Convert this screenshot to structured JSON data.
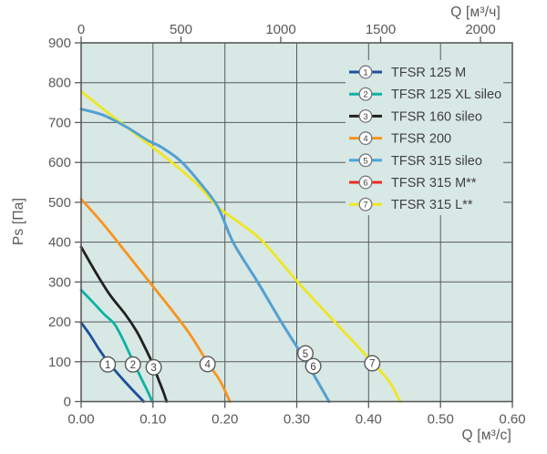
{
  "chart_data": {
    "type": "line",
    "description": "Fan performance curves: static pressure Ps versus airflow Q for TFSR duct fans",
    "plot_bg_color": "#d8e8e4",
    "grid_color": "#595a5c",
    "grid": true,
    "text_color": "#58595b",
    "legend_position": "top-right",
    "y_axis": {
      "label": "Ps [Па]",
      "range": [
        0,
        900
      ],
      "ticks": [
        {
          "v": 0,
          "label": "0"
        },
        {
          "v": 100,
          "label": "100"
        },
        {
          "v": 200,
          "label": "200"
        },
        {
          "v": 300,
          "label": "300"
        },
        {
          "v": 400,
          "label": "400"
        },
        {
          "v": 500,
          "label": "500"
        },
        {
          "v": 600,
          "label": "600"
        },
        {
          "v": 700,
          "label": "700"
        },
        {
          "v": 800,
          "label": "800"
        },
        {
          "v": 900,
          "label": "900"
        }
      ]
    },
    "x_axis_bottom": {
      "label": "Q [м³/с]",
      "range": [
        0,
        0.6
      ],
      "ticks": [
        {
          "v": 0.0,
          "label": "0.00"
        },
        {
          "v": 0.1,
          "label": "0.10"
        },
        {
          "v": 0.2,
          "label": "0.20"
        },
        {
          "v": 0.3,
          "label": "0.30"
        },
        {
          "v": 0.4,
          "label": "0.40"
        },
        {
          "v": 0.5,
          "label": "0.50"
        },
        {
          "v": 0.6,
          "label": "0.60"
        }
      ]
    },
    "x_axis_top": {
      "label": "Q [м³/ч]",
      "range": [
        0,
        2160
      ],
      "ticks": [
        {
          "v": 0,
          "label": "0"
        },
        {
          "v": 500,
          "label": "500"
        },
        {
          "v": 1000,
          "label": "1000"
        },
        {
          "v": 1500,
          "label": "1500"
        },
        {
          "v": 2000,
          "label": "2000"
        }
      ]
    },
    "series": [
      {
        "num": "1",
        "name": "TFSR 125 M",
        "color": "#1d4f9c",
        "points": [
          [
            0,
            198
          ],
          [
            0.012,
            168
          ],
          [
            0.025,
            131
          ],
          [
            0.038,
            98
          ],
          [
            0.052,
            68
          ],
          [
            0.066,
            40
          ],
          [
            0.079,
            15
          ],
          [
            0.087,
            0
          ]
        ]
      },
      {
        "num": "2",
        "name": "TFSR 125 XL sileo",
        "color": "#0cb2a4",
        "points": [
          [
            0,
            280
          ],
          [
            0.016,
            250
          ],
          [
            0.032,
            219
          ],
          [
            0.046,
            195
          ],
          [
            0.057,
            160
          ],
          [
            0.067,
            122
          ],
          [
            0.074,
            95
          ],
          [
            0.084,
            57
          ],
          [
            0.092,
            28
          ],
          [
            0.099,
            0
          ]
        ]
      },
      {
        "num": "3",
        "name": "TFSR 160 sileo",
        "color": "#231f20",
        "points": [
          [
            0,
            388
          ],
          [
            0.02,
            325
          ],
          [
            0.04,
            268
          ],
          [
            0.061,
            220
          ],
          [
            0.077,
            177
          ],
          [
            0.089,
            135
          ],
          [
            0.099,
            97
          ],
          [
            0.107,
            58
          ],
          [
            0.114,
            26
          ],
          [
            0.119,
            0
          ]
        ]
      },
      {
        "num": "4",
        "name": "TFSR 200",
        "color": "#f7941e",
        "points": [
          [
            0,
            508
          ],
          [
            0.03,
            447
          ],
          [
            0.062,
            375
          ],
          [
            0.095,
            300
          ],
          [
            0.126,
            230
          ],
          [
            0.151,
            170
          ],
          [
            0.176,
            98
          ],
          [
            0.193,
            53
          ],
          [
            0.207,
            0
          ]
        ]
      },
      {
        "num": "5",
        "name": "TFSR 315 sileo",
        "color": "#49a5db",
        "points": [
          [
            0,
            734
          ],
          [
            0.03,
            719
          ],
          [
            0.062,
            690
          ],
          [
            0.092,
            656
          ],
          [
            0.112,
            638
          ],
          [
            0.138,
            604
          ],
          [
            0.163,
            554
          ],
          [
            0.19,
            489
          ],
          [
            0.212,
            398
          ],
          [
            0.245,
            302
          ],
          [
            0.278,
            201
          ],
          [
            0.312,
            103
          ],
          [
            0.345,
            0
          ]
        ]
      },
      {
        "num": "6",
        "name": "TFSR 315 M**",
        "color": "#ed2b24",
        "note": "curve coincides with TFSR 315 sileo (drawn hidden beneath it)",
        "points": [
          [
            0,
            734
          ],
          [
            0.03,
            719
          ],
          [
            0.062,
            690
          ],
          [
            0.092,
            656
          ],
          [
            0.112,
            638
          ],
          [
            0.138,
            604
          ],
          [
            0.163,
            554
          ],
          [
            0.19,
            489
          ],
          [
            0.212,
            398
          ],
          [
            0.245,
            302
          ],
          [
            0.278,
            201
          ],
          [
            0.312,
            103
          ],
          [
            0.345,
            0
          ]
        ]
      },
      {
        "num": "7",
        "name": "TFSR 315 L**",
        "color": "#efe622",
        "points": [
          [
            0,
            778
          ],
          [
            0.04,
            721
          ],
          [
            0.082,
            663
          ],
          [
            0.122,
            606
          ],
          [
            0.161,
            546
          ],
          [
            0.19,
            489
          ],
          [
            0.222,
            446
          ],
          [
            0.252,
            403
          ],
          [
            0.301,
            301
          ],
          [
            0.356,
            194
          ],
          [
            0.405,
            99
          ],
          [
            0.429,
            49
          ],
          [
            0.444,
            0
          ]
        ]
      }
    ],
    "curve_number_badges": [
      {
        "num": "1",
        "x": 0.037,
        "y": 93
      },
      {
        "num": "2",
        "x": 0.072,
        "y": 93
      },
      {
        "num": "3",
        "x": 0.101,
        "y": 86
      },
      {
        "num": "4",
        "x": 0.176,
        "y": 94
      },
      {
        "num": "5",
        "x": 0.312,
        "y": 121
      },
      {
        "num": "6",
        "x": 0.323,
        "y": 89
      },
      {
        "num": "7",
        "x": 0.405,
        "y": 96
      }
    ]
  }
}
